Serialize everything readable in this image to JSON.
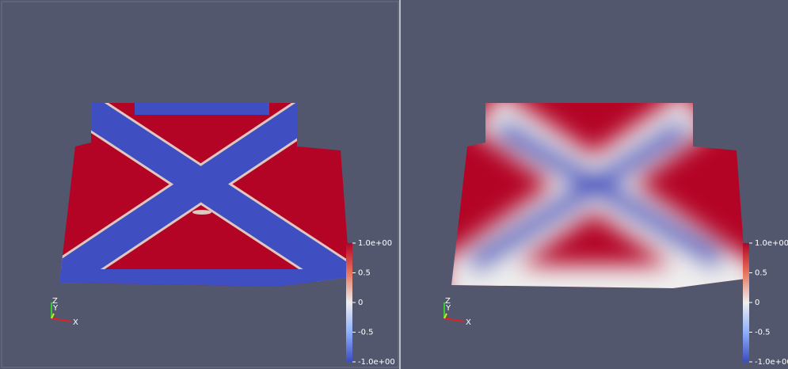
{
  "views": [
    {
      "colorbar": {
        "range": [
          -1,
          1
        ],
        "ticks": [
          {
            "value": 1,
            "label": "1.0e+00"
          },
          0.5,
          0,
          -0.5,
          {
            "value": -1,
            "label": "-1.0e+00"
          }
        ]
      },
      "axes": {
        "z": "Z",
        "y": "Y",
        "x": "X"
      }
    },
    {
      "colorbar": {
        "range": [
          -1,
          1
        ],
        "ticks": [
          {
            "value": 1,
            "label": "1.0e+00"
          },
          0.5,
          0,
          -0.5,
          {
            "value": -1,
            "label": "-1.0e+00"
          }
        ]
      },
      "axes": {
        "z": "Z",
        "y": "Y",
        "x": "X"
      }
    }
  ]
}
